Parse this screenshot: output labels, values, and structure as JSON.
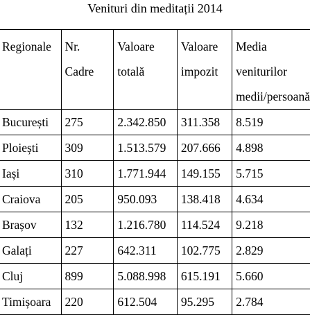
{
  "title": "Venituri din meditații 2014",
  "table": {
    "headers": [
      [
        "Regionale"
      ],
      [
        "Nr.",
        "Cadre"
      ],
      [
        "Valoare",
        "totală"
      ],
      [
        "Valoare",
        "impozit"
      ],
      [
        "Media",
        "veniturilor",
        "medii/persoană"
      ]
    ],
    "rows": [
      [
        "București",
        "275",
        "2.342.850",
        "311.358",
        "8.519"
      ],
      [
        "Ploiești",
        "309",
        "1.513.579",
        "207.666",
        "4.898"
      ],
      [
        "Iași",
        "310",
        "1.771.944",
        "149.155",
        "5.715"
      ],
      [
        "Craiova",
        "205",
        "950.093",
        "138.418",
        "4.634"
      ],
      [
        "Brașov",
        "132",
        "1.216.780",
        "114.524",
        "9.218"
      ],
      [
        "Galați",
        "227",
        "642.311",
        "102.775",
        "2.829"
      ],
      [
        "Cluj",
        "899",
        "5.088.998",
        "615.191",
        "5.660"
      ],
      [
        "Timișoara",
        "220",
        "612.504",
        "95.295",
        "2.784"
      ]
    ]
  }
}
